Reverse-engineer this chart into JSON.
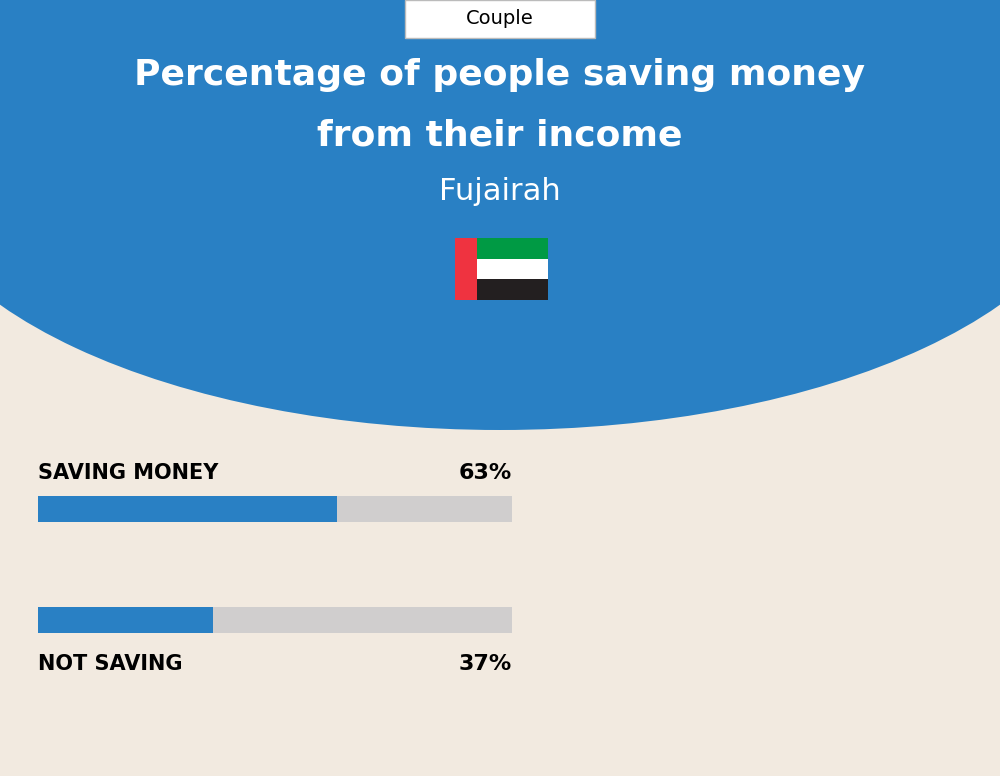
{
  "title_line1": "Percentage of people saving money",
  "title_line2": "from their income",
  "subtitle": "Fujairah",
  "tab_label": "Couple",
  "bg_top_color": "#2980C4",
  "bg_bottom_color": "#F2EAE0",
  "saving_label": "SAVING MONEY",
  "saving_value": 63,
  "saving_pct_label": "63%",
  "not_saving_label": "NOT SAVING",
  "not_saving_value": 37,
  "not_saving_pct_label": "37%",
  "bar_filled_color": "#2980C4",
  "bar_empty_color": "#D0CECE",
  "bar_max": 100,
  "label_color": "#000000",
  "title_color": "#FFFFFF",
  "subtitle_color": "#FFFFFF",
  "fig_width": 10.0,
  "fig_height": 7.76,
  "dpi": 100
}
